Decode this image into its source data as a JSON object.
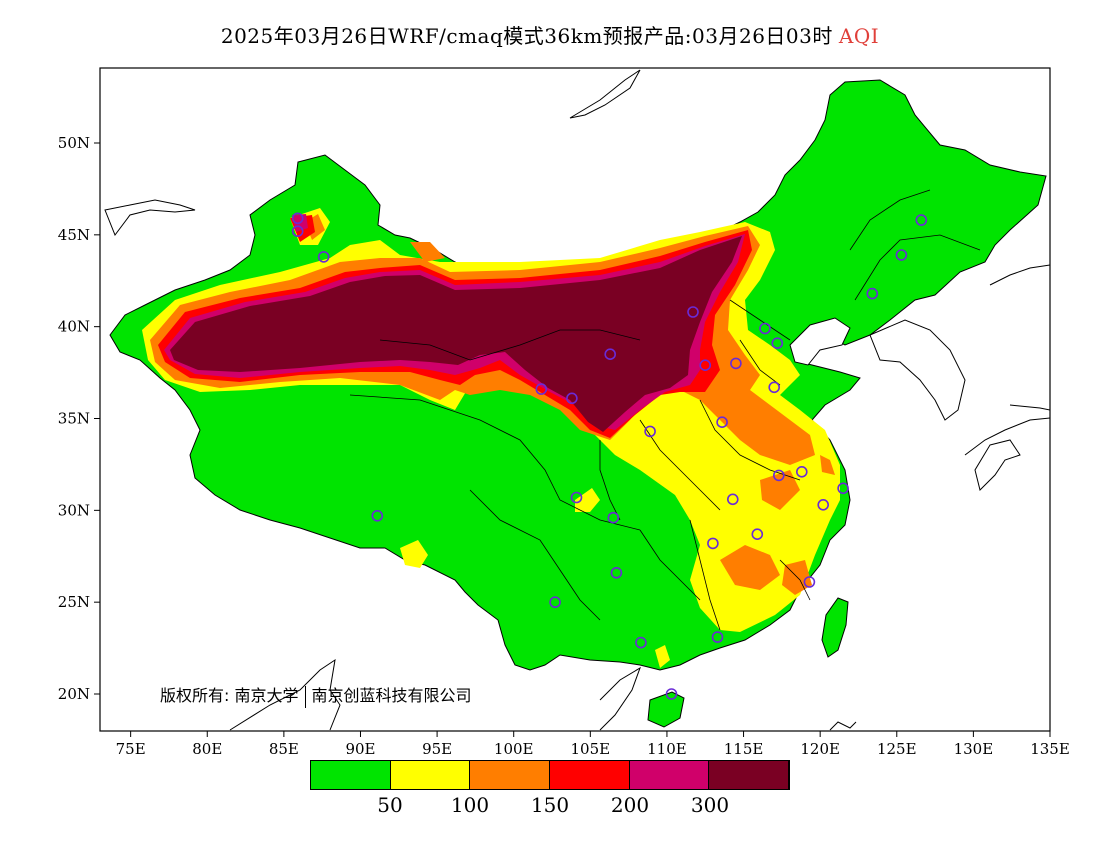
{
  "title": {
    "text": "2025年03月26日WRF/cmaq模式36km预报产品:03月26日03时",
    "product": "AQI"
  },
  "axes": {
    "x_ticks": [
      "75E",
      "80E",
      "85E",
      "90E",
      "95E",
      "100E",
      "105E",
      "110E",
      "115E",
      "120E",
      "125E",
      "130E",
      "135E"
    ],
    "y_ticks": [
      "50N",
      "45N",
      "40N",
      "35N",
      "30N",
      "25N",
      "20N"
    ]
  },
  "copyright": {
    "label": "版权所有:",
    "org1": "南京大学",
    "org2": "南京创蓝科技有限公司"
  },
  "legend": {
    "colors": [
      "#00e400",
      "#ffff00",
      "#ff7e00",
      "#ff0000",
      "#d0006a",
      "#7a0023"
    ],
    "labels": [
      "50",
      "100",
      "150",
      "200",
      "300"
    ]
  },
  "stations": [
    {
      "lon": 85.9,
      "lat": 45.9
    },
    {
      "lon": 85.9,
      "lat": 45.2
    },
    {
      "lon": 87.6,
      "lat": 43.8
    },
    {
      "lon": 111.7,
      "lat": 40.8
    },
    {
      "lon": 116.4,
      "lat": 39.9
    },
    {
      "lon": 117.2,
      "lat": 39.1
    },
    {
      "lon": 114.5,
      "lat": 38.0
    },
    {
      "lon": 112.5,
      "lat": 37.9
    },
    {
      "lon": 106.3,
      "lat": 38.5
    },
    {
      "lon": 101.8,
      "lat": 36.6
    },
    {
      "lon": 103.8,
      "lat": 36.1
    },
    {
      "lon": 117.0,
      "lat": 36.7
    },
    {
      "lon": 113.6,
      "lat": 34.8
    },
    {
      "lon": 108.9,
      "lat": 34.3
    },
    {
      "lon": 117.3,
      "lat": 31.9
    },
    {
      "lon": 118.8,
      "lat": 32.1
    },
    {
      "lon": 121.5,
      "lat": 31.2
    },
    {
      "lon": 120.2,
      "lat": 30.3
    },
    {
      "lon": 114.3,
      "lat": 30.6
    },
    {
      "lon": 104.1,
      "lat": 30.7
    },
    {
      "lon": 106.5,
      "lat": 29.6
    },
    {
      "lon": 115.9,
      "lat": 28.7
    },
    {
      "lon": 113.0,
      "lat": 28.2
    },
    {
      "lon": 106.7,
      "lat": 26.6
    },
    {
      "lon": 119.3,
      "lat": 26.1
    },
    {
      "lon": 102.7,
      "lat": 25.0
    },
    {
      "lon": 113.3,
      "lat": 23.1
    },
    {
      "lon": 108.3,
      "lat": 22.8
    },
    {
      "lon": 110.3,
      "lat": 20.0
    },
    {
      "lon": 91.1,
      "lat": 29.7
    },
    {
      "lon": 123.4,
      "lat": 41.8
    },
    {
      "lon": 125.3,
      "lat": 43.9
    },
    {
      "lon": 126.6,
      "lat": 45.8
    }
  ]
}
